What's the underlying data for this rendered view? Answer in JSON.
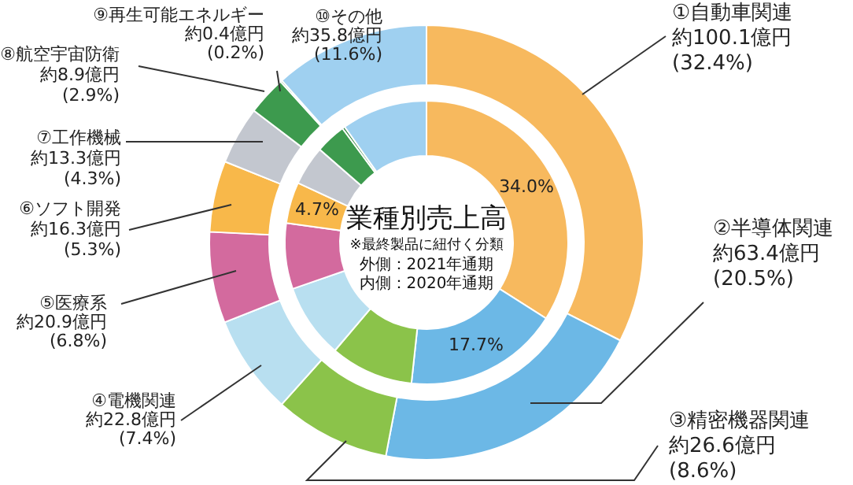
{
  "chart_data": {
    "type": "donut",
    "title": "業種別売上高",
    "subtitle": "※最終製品に紐付く分類",
    "annotations": [
      "外側：2021年通期",
      "内側：2020年通期"
    ],
    "categories": [
      "①自動車関連",
      "②半導体関連",
      "③精密機器関連",
      "④電機関連",
      "⑤医療系",
      "⑥ソフト開発",
      "⑦工作機械",
      "⑧航空宇宙防衛",
      "⑨再生可能エネルギー",
      "⑩その他"
    ],
    "colors": [
      "#f7b95e",
      "#6cb8e6",
      "#8bc34a",
      "#b8dff0",
      "#d36a9e",
      "#f8b84a",
      "#c3c7cf",
      "#3d9a4e",
      "#2b7f3a",
      "#9fd0f0"
    ],
    "series": [
      {
        "values": [
          100.1,
          63.4,
          26.6,
          22.8,
          20.9,
          16.3,
          13.3,
          8.9,
          0.4,
          35.8
        ],
        "value_labels": [
          "約100.1億円\n(32.4%)",
          "約63.4億円\n(20.5%)",
          "約26.6億円\n(8.6%)",
          "約22.8億円\n(7.4%)",
          "約20.9億円\n(6.8%)",
          "約16.3億円\n(5.3%)",
          "約13.3億円\n(4.3%)",
          "約8.9億円\n(2.9%)",
          "約0.4億円\n(0.2%)",
          "約35.8億円\n(11.6%)"
        ]
      },
      {
        "values": [
          34.0,
          17.7,
          9.5,
          8.5,
          7.5,
          4.7,
          4.5,
          3.5,
          0.3,
          9.8
        ],
        "value_labels": [
          "34.0%",
          "17.7%",
          null,
          null,
          null,
          "4.7%",
          null,
          null,
          null,
          null
        ]
      }
    ]
  }
}
